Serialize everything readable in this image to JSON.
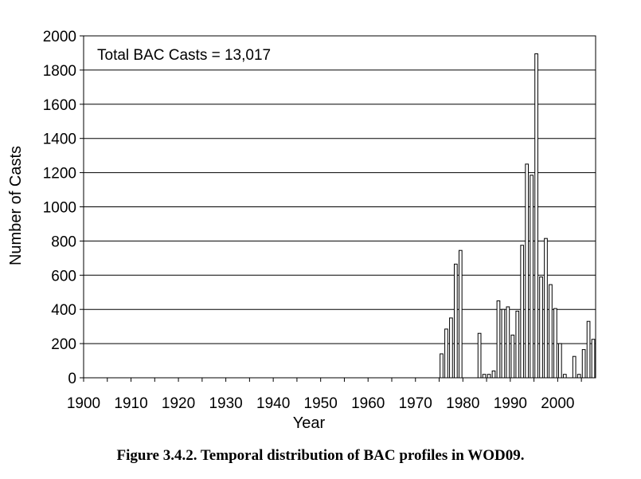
{
  "caption": "Figure 3.4.2. Temporal distribution of BAC profiles in WOD09.",
  "chart_data": {
    "type": "bar",
    "title": "",
    "annotation": "Total BAC Casts = 13,017",
    "xlabel": "Year",
    "ylabel": "Number of Casts",
    "xlim": [
      1900,
      2008
    ],
    "ylim": [
      0,
      2000
    ],
    "grid": "horizontal",
    "legend": "none",
    "bar_fill": "#ffffff",
    "bar_stroke": "#000000",
    "x_ticks": [
      "1900",
      "1910",
      "1920",
      "1930",
      "1940",
      "1950",
      "1960",
      "1970",
      "1980",
      "1990",
      "2000"
    ],
    "y_ticks": [
      "0",
      "200",
      "400",
      "600",
      "800",
      "1000",
      "1200",
      "1400",
      "1600",
      "1800",
      "2000"
    ],
    "x": [
      1975,
      1976,
      1977,
      1978,
      1979,
      1983,
      1984,
      1985,
      1986,
      1987,
      1988,
      1989,
      1990,
      1991,
      1992,
      1993,
      1994,
      1995,
      1996,
      1997,
      1998,
      1999,
      2000,
      2001,
      2003,
      2004,
      2005,
      2006,
      2007
    ],
    "values": [
      140,
      285,
      350,
      665,
      745,
      260,
      20,
      20,
      40,
      450,
      400,
      415,
      250,
      390,
      775,
      1250,
      1185,
      1895,
      590,
      815,
      545,
      405,
      200,
      20,
      125,
      20,
      165,
      330,
      225
    ]
  }
}
